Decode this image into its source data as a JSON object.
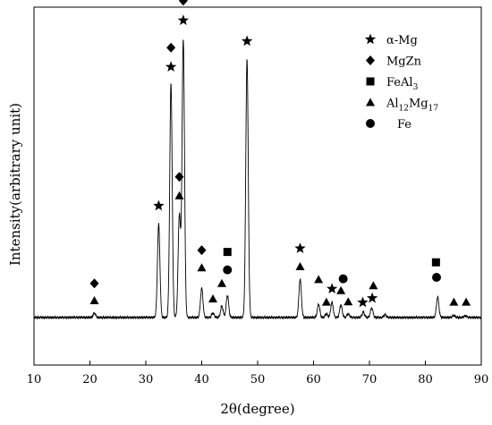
{
  "chart_data": {
    "type": "line",
    "title": "",
    "xlabel": "2θ(degree)",
    "ylabel": "Intensity(arbitrary unit)",
    "xlim": [
      10,
      90
    ],
    "ylim": [
      0,
      100
    ],
    "x_ticks": [
      10,
      20,
      30,
      40,
      50,
      60,
      70,
      80,
      90
    ],
    "y_ticks_shown": false,
    "grid": false,
    "legend_position": "top-right",
    "legend": [
      {
        "marker": "star",
        "label": "α-Mg",
        "sub": ""
      },
      {
        "marker": "diamond",
        "label": "MgZn",
        "sub": ""
      },
      {
        "marker": "square",
        "label": "FeAl",
        "sub": "3"
      },
      {
        "marker": "triangle",
        "label": "Al",
        "sub": "12",
        "label2": "Mg",
        "sub2": "17"
      },
      {
        "marker": "circle",
        "label": "Fe",
        "sub": ""
      }
    ],
    "baseline": 13.3,
    "peaks": [
      {
        "x": 20.8,
        "y": 14.5
      },
      {
        "x": 32.3,
        "y": 39.4
      },
      {
        "x": 34.5,
        "y": 78.6
      },
      {
        "x": 36.0,
        "y": 42.0
      },
      {
        "x": 36.7,
        "y": 91.0
      },
      {
        "x": 40.0,
        "y": 21.5
      },
      {
        "x": 42.0,
        "y": 14.5
      },
      {
        "x": 43.6,
        "y": 16.5
      },
      {
        "x": 44.6,
        "y": 19.5
      },
      {
        "x": 48.1,
        "y": 85.5
      },
      {
        "x": 57.6,
        "y": 24.0
      },
      {
        "x": 60.9,
        "y": 17.0
      },
      {
        "x": 62.3,
        "y": 14.3
      },
      {
        "x": 63.3,
        "y": 17.5
      },
      {
        "x": 64.9,
        "y": 16.8
      },
      {
        "x": 66.2,
        "y": 14.3
      },
      {
        "x": 68.9,
        "y": 14.8
      },
      {
        "x": 70.4,
        "y": 16.0
      },
      {
        "x": 72.8,
        "y": 14.1
      },
      {
        "x": 82.2,
        "y": 19.0
      },
      {
        "x": 85.1,
        "y": 13.9
      },
      {
        "x": 87.2,
        "y": 13.8
      }
    ],
    "peak_markers": [
      {
        "x": 20.8,
        "y": 18.0,
        "marker": "triangle"
      },
      {
        "x": 20.8,
        "y": 22.8,
        "marker": "diamond"
      },
      {
        "x": 32.3,
        "y": 44.5,
        "marker": "star"
      },
      {
        "x": 34.5,
        "y": 83.3,
        "marker": "star"
      },
      {
        "x": 34.5,
        "y": 88.7,
        "marker": "diamond"
      },
      {
        "x": 36.0,
        "y": 47.3,
        "marker": "triangle"
      },
      {
        "x": 36.0,
        "y": 52.6,
        "marker": "diamond"
      },
      {
        "x": 36.7,
        "y": 96.3,
        "marker": "star"
      },
      {
        "x": 36.7,
        "y": 101.8,
        "marker": "diamond"
      },
      {
        "x": 40.0,
        "y": 27.2,
        "marker": "triangle"
      },
      {
        "x": 40.0,
        "y": 32.1,
        "marker": "diamond"
      },
      {
        "x": 42.0,
        "y": 18.5,
        "marker": "triangle"
      },
      {
        "x": 43.6,
        "y": 22.8,
        "marker": "triangle"
      },
      {
        "x": 44.6,
        "y": 26.6,
        "marker": "circle"
      },
      {
        "x": 44.6,
        "y": 31.6,
        "marker": "square"
      },
      {
        "x": 48.1,
        "y": 90.5,
        "marker": "star"
      },
      {
        "x": 57.6,
        "y": 27.5,
        "marker": "triangle"
      },
      {
        "x": 57.6,
        "y": 32.6,
        "marker": "star"
      },
      {
        "x": 60.9,
        "y": 23.9,
        "marker": "triangle"
      },
      {
        "x": 62.3,
        "y": 17.6,
        "marker": "triangle"
      },
      {
        "x": 63.3,
        "y": 21.3,
        "marker": "star"
      },
      {
        "x": 64.9,
        "y": 20.8,
        "marker": "triangle"
      },
      {
        "x": 65.3,
        "y": 24.1,
        "marker": "circle"
      },
      {
        "x": 66.2,
        "y": 17.7,
        "marker": "triangle"
      },
      {
        "x": 68.8,
        "y": 17.5,
        "marker": "star"
      },
      {
        "x": 70.5,
        "y": 18.7,
        "marker": "star"
      },
      {
        "x": 70.7,
        "y": 22.2,
        "marker": "triangle"
      },
      {
        "x": 82.0,
        "y": 24.5,
        "marker": "circle"
      },
      {
        "x": 81.9,
        "y": 28.7,
        "marker": "square"
      },
      {
        "x": 85.1,
        "y": 17.6,
        "marker": "triangle"
      },
      {
        "x": 87.3,
        "y": 17.6,
        "marker": "triangle"
      }
    ]
  }
}
